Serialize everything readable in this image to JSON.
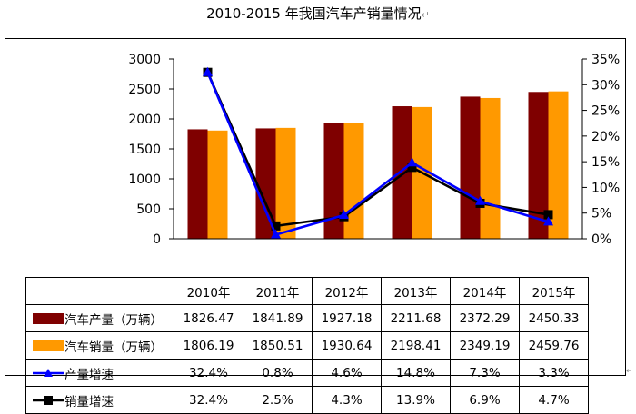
{
  "title": "2010-2015 年我国汽车产销量情况",
  "return_mark": "↵",
  "colors": {
    "production_bar": "#7f0000",
    "sales_bar": "#ff9900",
    "production_growth_line": "#0000ff",
    "sales_growth_line": "#000000"
  },
  "chart_data": {
    "type": "bar",
    "categories": [
      "2010年",
      "2011年",
      "2012年",
      "2013年",
      "2014年",
      "2015年"
    ],
    "series": [
      {
        "name": "汽车产量（万辆）",
        "type": "bar",
        "axis": "left",
        "values": [
          1826.47,
          1841.89,
          1927.18,
          2211.68,
          2372.29,
          2450.33
        ],
        "display": [
          "1826.47",
          "1841.89",
          "1927.18",
          "2211.68",
          "2372.29",
          "2450.33"
        ]
      },
      {
        "name": "汽车销量（万辆）",
        "type": "bar",
        "axis": "left",
        "values": [
          1806.19,
          1850.51,
          1930.64,
          2198.41,
          2349.19,
          2459.76
        ],
        "display": [
          "1806.19",
          "1850.51",
          "1930.64",
          "2198.41",
          "2349.19",
          "2459.76"
        ]
      },
      {
        "name": "产量增速",
        "type": "line",
        "axis": "right",
        "marker": "triangle",
        "values": [
          32.4,
          0.8,
          4.6,
          14.8,
          7.3,
          3.3
        ],
        "display": [
          "32.4%",
          "0.8%",
          "4.6%",
          "14.8%",
          "7.3%",
          "3.3%"
        ]
      },
      {
        "name": "销量增速",
        "type": "line",
        "axis": "right",
        "marker": "square",
        "values": [
          32.4,
          2.5,
          4.3,
          13.9,
          6.9,
          4.7
        ],
        "display": [
          "32.4%",
          "2.5%",
          "4.3%",
          "13.9%",
          "6.9%",
          "4.7%"
        ]
      }
    ],
    "y_left": {
      "lim": [
        0,
        3000
      ],
      "ticks": [
        "0",
        "500",
        "1000",
        "1500",
        "2000",
        "2500",
        "3000"
      ]
    },
    "y_right": {
      "lim": [
        0,
        35
      ],
      "ticks": [
        "0%",
        "5%",
        "10%",
        "15%",
        "20%",
        "25%",
        "30%",
        "35%"
      ]
    },
    "grid": false,
    "legend": "data-table"
  }
}
